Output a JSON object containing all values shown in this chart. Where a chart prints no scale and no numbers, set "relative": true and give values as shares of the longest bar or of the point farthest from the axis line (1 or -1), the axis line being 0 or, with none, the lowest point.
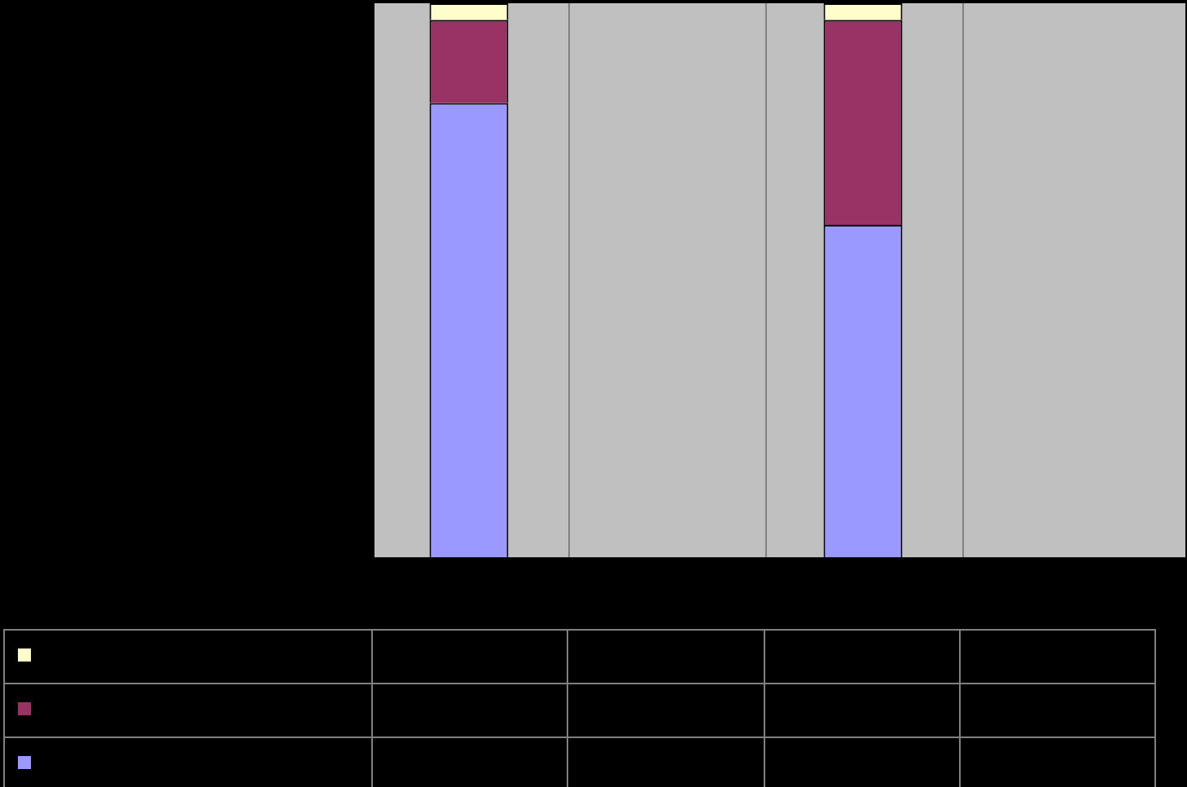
{
  "chart_data": {
    "type": "bar",
    "relative": true,
    "stacked": true,
    "categories": [
      null,
      null
    ],
    "series": [
      {
        "color": "#9999ff",
        "values": [
          0.82,
          0.6
        ]
      },
      {
        "color": "#993366",
        "values": [
          0.15,
          0.37
        ]
      },
      {
        "color": "#ffffcc",
        "values": [
          0.03,
          0.03
        ]
      }
    ]
  }
}
